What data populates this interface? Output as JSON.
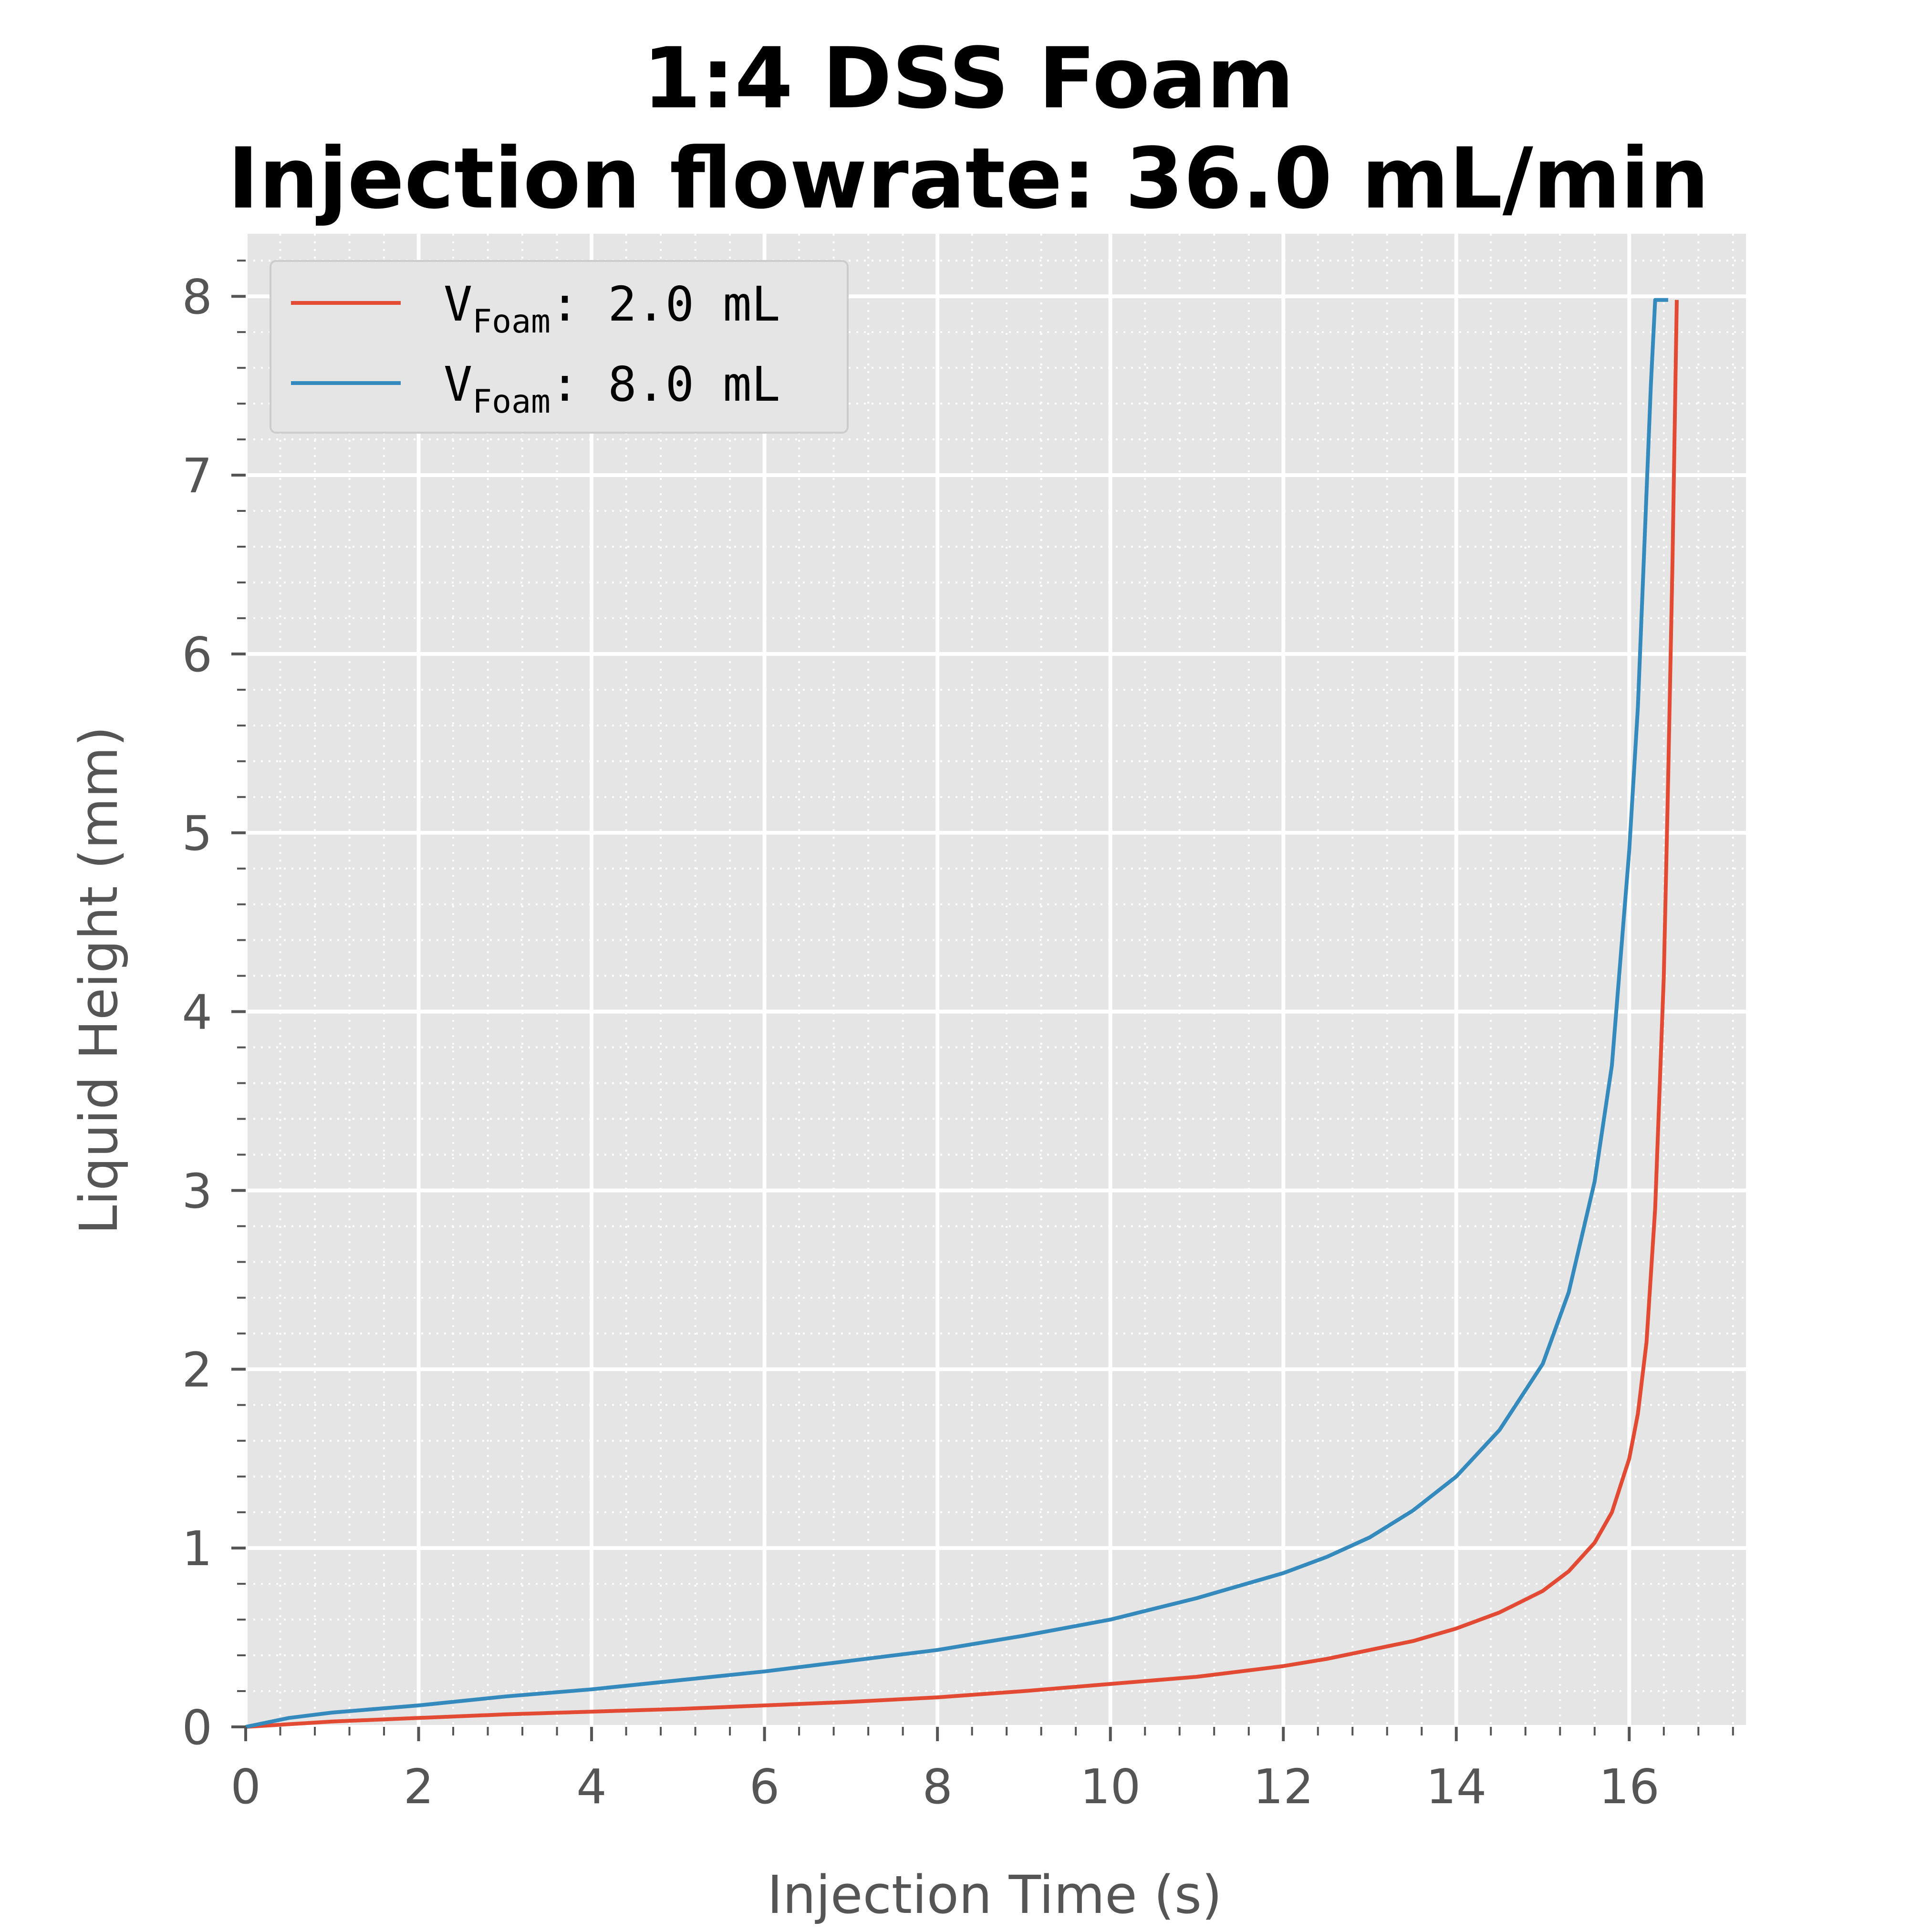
{
  "chart_data": {
    "type": "line",
    "title": [
      "1:4 DSS Foam",
      "Injection flowrate: 36.0 mL/min"
    ],
    "xlabel": "Injection Time (s)",
    "ylabel": "Liquid Height (mm)",
    "xlim": [
      0,
      17.35
    ],
    "ylim": [
      0,
      8.35
    ],
    "xticks": [
      0,
      2,
      4,
      6,
      8,
      10,
      12,
      14,
      16
    ],
    "xtick_labels": [
      "0",
      "2",
      "4",
      "6",
      "8",
      "10",
      "12",
      "14",
      "16"
    ],
    "yticks": [
      0,
      1,
      2,
      3,
      4,
      5,
      6,
      7,
      8
    ],
    "ytick_labels": [
      "0",
      "1",
      "2",
      "3",
      "4",
      "5",
      "6",
      "7",
      "8"
    ],
    "grid": true,
    "minor_grid": true,
    "legend_position": "top-left",
    "series": [
      {
        "legend_main": "V",
        "legend_sub": "Foam",
        "legend_rest": ": 2.0 mL",
        "color": "#E24A33",
        "x": [
          0,
          1,
          2,
          3,
          4,
          5,
          6,
          7,
          8,
          9,
          10,
          11,
          12,
          12.5,
          13,
          13.5,
          14,
          14.5,
          15,
          15.3,
          15.6,
          15.8,
          16,
          16.1,
          16.2,
          16.3,
          16.4,
          16.45,
          16.5,
          16.55,
          16.55
        ],
        "y": [
          0,
          0.03,
          0.05,
          0.07,
          0.085,
          0.1,
          0.12,
          0.14,
          0.165,
          0.2,
          0.24,
          0.28,
          0.34,
          0.38,
          0.43,
          0.48,
          0.55,
          0.64,
          0.76,
          0.87,
          1.03,
          1.2,
          1.5,
          1.75,
          2.15,
          2.9,
          4.2,
          5.3,
          6.5,
          7.98,
          7.98
        ]
      },
      {
        "legend_main": "V",
        "legend_sub": "Foam",
        "legend_rest": ": 8.0 mL",
        "color": "#348ABD",
        "x": [
          0,
          0.5,
          1,
          2,
          3,
          4,
          5,
          6,
          7,
          8,
          9,
          10,
          11,
          12,
          12.5,
          13,
          13.5,
          14,
          14.5,
          15,
          15.3,
          15.6,
          15.8,
          16,
          16.1,
          16.2,
          16.25,
          16.3,
          16.35,
          16.45
        ],
        "y": [
          0,
          0.05,
          0.08,
          0.12,
          0.17,
          0.21,
          0.26,
          0.31,
          0.37,
          0.43,
          0.51,
          0.6,
          0.72,
          0.86,
          0.95,
          1.06,
          1.21,
          1.4,
          1.66,
          2.03,
          2.43,
          3.05,
          3.7,
          4.9,
          5.7,
          6.9,
          7.5,
          7.98,
          7.98,
          7.98
        ]
      }
    ]
  }
}
